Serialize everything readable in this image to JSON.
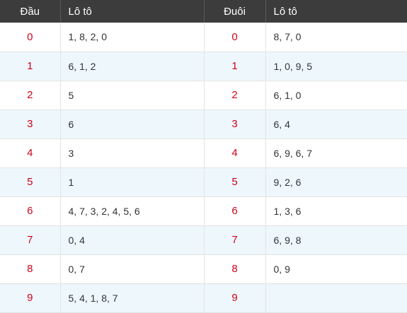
{
  "headers": {
    "dau": "Đầu",
    "loto_left": "Lô tô",
    "duoi": "Đuôi",
    "loto_right": "Lô tô"
  },
  "rows": [
    {
      "dau": "0",
      "dau_loto": "1, 8, 2, 0",
      "duoi": "0",
      "duoi_loto": "8, 7, 0"
    },
    {
      "dau": "1",
      "dau_loto": "6, 1, 2",
      "duoi": "1",
      "duoi_loto": "1, 0, 9, 5"
    },
    {
      "dau": "2",
      "dau_loto": "5",
      "duoi": "2",
      "duoi_loto": "6, 1, 0"
    },
    {
      "dau": "3",
      "dau_loto": "6",
      "duoi": "3",
      "duoi_loto": "6, 4"
    },
    {
      "dau": "4",
      "dau_loto": "3",
      "duoi": "4",
      "duoi_loto": "6, 9, 6, 7"
    },
    {
      "dau": "5",
      "dau_loto": "1",
      "duoi": "5",
      "duoi_loto": "9, 2, 6"
    },
    {
      "dau": "6",
      "dau_loto": "4, 7, 3, 2, 4, 5, 6",
      "duoi": "6",
      "duoi_loto": "1, 3, 6"
    },
    {
      "dau": "7",
      "dau_loto": "0, 4",
      "duoi": "7",
      "duoi_loto": "6, 9, 8"
    },
    {
      "dau": "8",
      "dau_loto": "0, 7",
      "duoi": "8",
      "duoi_loto": "0, 9"
    },
    {
      "dau": "9",
      "dau_loto": "5, 4, 1, 8, 7",
      "duoi": "9",
      "duoi_loto": ""
    }
  ],
  "colors": {
    "header_bg": "#3c3c3c",
    "number_red": "#d0021b",
    "stripe_bg": "#eef8fc"
  }
}
